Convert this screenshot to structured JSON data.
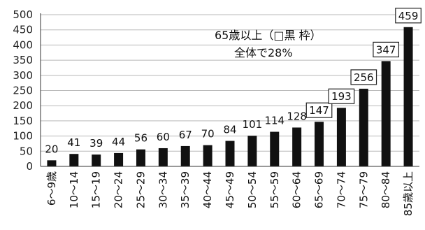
{
  "chart_data": {
    "type": "bar",
    "categories": [
      "6～9歳",
      "10～14",
      "15～19",
      "20～24",
      "25～29",
      "30～34",
      "35～39",
      "40～44",
      "45～49",
      "50～54",
      "55～59",
      "60～64",
      "65～69",
      "70～74",
      "75～79",
      "80～84",
      "85歳以上"
    ],
    "values": [
      20,
      41,
      39,
      44,
      56,
      60,
      67,
      70,
      84,
      101,
      114,
      128,
      147,
      193,
      256,
      347,
      459
    ],
    "data_labels": [
      "20",
      "41",
      "39",
      "44",
      "56",
      "60",
      "67",
      "70",
      "84",
      "101",
      "114",
      "128",
      "147",
      "193",
      "256",
      "347",
      "459"
    ],
    "boxed_labels": [
      false,
      false,
      false,
      false,
      false,
      false,
      false,
      false,
      false,
      false,
      false,
      false,
      true,
      true,
      true,
      true,
      true
    ],
    "yticks": [
      "0",
      "50",
      "100",
      "150",
      "200",
      "250",
      "300",
      "350",
      "400",
      "450",
      "500"
    ],
    "ylim": [
      0,
      500
    ],
    "grid": true,
    "bar_color": "#111111",
    "annotation": {
      "line1": "65歳以上（□黒 枠）",
      "line2": "全体で28%"
    }
  }
}
